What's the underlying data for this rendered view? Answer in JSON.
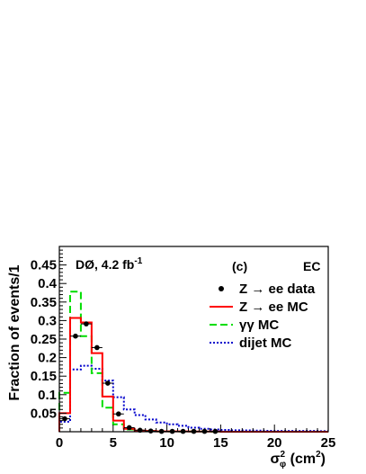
{
  "chart_data": {
    "type": "line",
    "title": "",
    "xlabel_symbol": "σ",
    "xlabel_sup": "2",
    "xlabel_sub": "φ",
    "xlabel_unit_pre": " (cm",
    "xlabel_unit_sup": "2",
    "xlabel_unit_post": ")",
    "ylabel": "Fraction of events/1",
    "xlim": [
      0,
      25
    ],
    "ylim": [
      0,
      0.5
    ],
    "x_ticks": [
      0,
      5,
      10,
      15,
      20,
      25
    ],
    "y_ticks": [
      0.05,
      0.1,
      0.15,
      0.2,
      0.25,
      0.3,
      0.35,
      0.4,
      0.45
    ],
    "annotations": {
      "experiment": "DØ, 4.2 fb",
      "experiment_sup": "-1",
      "panel": "(c)",
      "region": "EC"
    },
    "bin_edges": [
      0,
      1,
      2,
      3,
      4,
      5,
      6,
      7,
      8,
      9,
      10,
      11,
      12,
      13,
      14,
      15,
      16,
      17,
      18,
      19,
      20,
      21,
      22,
      23,
      24,
      25
    ],
    "series": [
      {
        "name": "Z → ee data",
        "style": "points",
        "color": "#000000",
        "x": [
          0.5,
          1.5,
          2.5,
          3.5,
          4.5,
          5.5,
          6.5,
          7.5,
          8.5,
          9.5,
          10.5,
          11.5,
          12.5,
          13.5,
          14.5
        ],
        "values": [
          0.035,
          0.258,
          0.291,
          0.227,
          0.131,
          0.048,
          0.011,
          0.004,
          0.002,
          0.001,
          0.001,
          0.001,
          0.001,
          0.001,
          0.001
        ],
        "x_error": 0.5
      },
      {
        "name": "Z → ee MC",
        "style": "solid",
        "color": "#ff0000",
        "values": [
          0.05,
          0.307,
          0.295,
          0.212,
          0.095,
          0.03,
          0.008,
          0.003,
          0.002,
          0.001,
          0.001,
          0.001,
          0.0005,
          0.0005,
          0.0005,
          0,
          0,
          0,
          0,
          0,
          0,
          0,
          0,
          0,
          0
        ]
      },
      {
        "name": "γγ MC",
        "style": "dashed",
        "color": "#00dd00",
        "values": [
          0.105,
          0.378,
          0.258,
          0.158,
          0.065,
          0.02,
          0.006,
          0.003,
          0.002,
          0.001,
          0.001,
          0.0005,
          0.0005,
          0.0005,
          0,
          0,
          0,
          0,
          0,
          0,
          0,
          0,
          0,
          0,
          0
        ]
      },
      {
        "name": "dijet MC",
        "style": "dotted",
        "color": "#0000cc",
        "values": [
          0.027,
          0.168,
          0.178,
          0.17,
          0.138,
          0.093,
          0.06,
          0.045,
          0.033,
          0.025,
          0.02,
          0.016,
          0.011,
          0.008,
          0.006,
          0.005,
          0.004,
          0.0035,
          0.003,
          0.0025,
          0.002,
          0.002,
          0.002,
          0.002,
          0.0015
        ]
      }
    ],
    "legend_position": "top-right"
  }
}
